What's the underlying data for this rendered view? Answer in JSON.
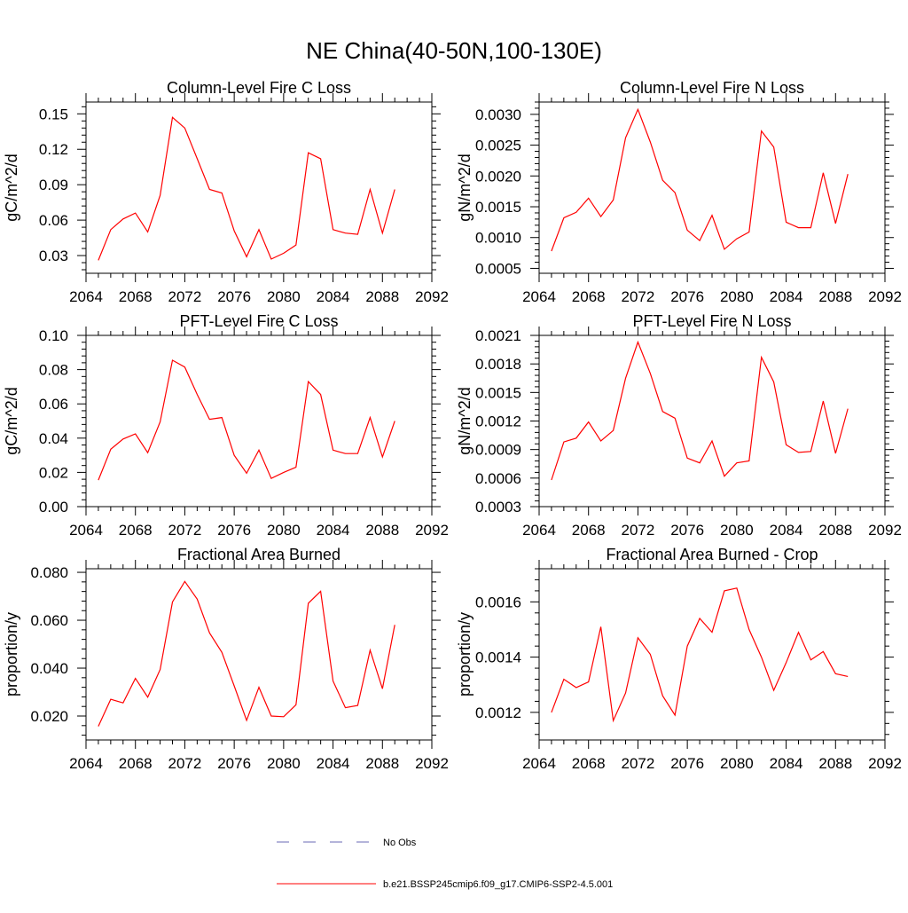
{
  "page": {
    "title": "NE China(40-50N,100-130E)"
  },
  "colors": {
    "model_line": "#ff0000",
    "obs_line": "#6a6ab4",
    "axis": "#000000"
  },
  "legend": {
    "entries": [
      {
        "label": "No Obs",
        "style": "dashed"
      },
      {
        "label": "b.e21.BSSP245cmip6.f09_g17.CMIP6-SSP2-4.5.001",
        "style": "solid"
      }
    ]
  },
  "chart_data": [
    {
      "type": "line",
      "title": "Column-Level Fire C Loss",
      "ylabel": "gC/m^2/d",
      "xlim": [
        2064,
        2092
      ],
      "xticks": [
        2064,
        2068,
        2072,
        2076,
        2080,
        2084,
        2088,
        2092
      ],
      "ylim": [
        0.015,
        0.16
      ],
      "yticks": [
        "0.03",
        "0.06",
        "0.09",
        "0.12",
        "0.15"
      ],
      "x": [
        2065,
        2066,
        2067,
        2068,
        2069,
        2070,
        2071,
        2072,
        2073,
        2074,
        2075,
        2076,
        2077,
        2078,
        2079,
        2080,
        2081,
        2082,
        2083,
        2084,
        2085,
        2086,
        2087,
        2088,
        2089
      ],
      "series": [
        {
          "values": [
            0.026,
            0.052,
            0.061,
            0.066,
            0.05,
            0.081,
            0.147,
            0.138,
            0.112,
            0.086,
            0.083,
            0.051,
            0.029,
            0.052,
            0.027,
            0.032,
            0.039,
            0.117,
            0.112,
            0.052,
            0.049,
            0.048,
            0.086,
            0.049,
            0.086
          ]
        }
      ]
    },
    {
      "type": "line",
      "title": "Column-Level Fire N Loss",
      "ylabel": "gN/m^2/d",
      "xlim": [
        2064,
        2092
      ],
      "xticks": [
        2064,
        2068,
        2072,
        2076,
        2080,
        2084,
        2088,
        2092
      ],
      "ylim": [
        0.00042,
        0.0032
      ],
      "yticks": [
        "0.0005",
        "0.0010",
        "0.0015",
        "0.0020",
        "0.0025",
        "0.0030"
      ],
      "x": [
        2065,
        2066,
        2067,
        2068,
        2069,
        2070,
        2071,
        2072,
        2073,
        2074,
        2075,
        2076,
        2077,
        2078,
        2079,
        2080,
        2081,
        2082,
        2083,
        2084,
        2085,
        2086,
        2087,
        2088,
        2089
      ],
      "series": [
        {
          "values": [
            0.00078,
            0.00132,
            0.00141,
            0.00164,
            0.00134,
            0.00161,
            0.00262,
            0.00308,
            0.00255,
            0.00193,
            0.00173,
            0.00112,
            0.00095,
            0.00136,
            0.00081,
            0.00098,
            0.00109,
            0.00273,
            0.00247,
            0.00125,
            0.00116,
            0.00116,
            0.00205,
            0.00123,
            0.00203
          ]
        }
      ]
    },
    {
      "type": "line",
      "title": "PFT-Level Fire C Loss",
      "ylabel": "gC/m^2/d",
      "xlim": [
        2064,
        2092
      ],
      "xticks": [
        2064,
        2068,
        2072,
        2076,
        2080,
        2084,
        2088,
        2092
      ],
      "ylim": [
        0,
        0.1
      ],
      "yticks": [
        "0.00",
        "0.02",
        "0.04",
        "0.06",
        "0.08",
        "0.10"
      ],
      "x": [
        2065,
        2066,
        2067,
        2068,
        2069,
        2070,
        2071,
        2072,
        2073,
        2074,
        2075,
        2076,
        2077,
        2078,
        2079,
        2080,
        2081,
        2082,
        2083,
        2084,
        2085,
        2086,
        2087,
        2088,
        2089
      ],
      "series": [
        {
          "values": [
            0.0155,
            0.0335,
            0.0395,
            0.0425,
            0.0315,
            0.0495,
            0.0855,
            0.0815,
            0.0655,
            0.051,
            0.052,
            0.03,
            0.0195,
            0.033,
            0.0165,
            0.02,
            0.023,
            0.073,
            0.0655,
            0.033,
            0.031,
            0.031,
            0.052,
            0.029,
            0.05
          ]
        }
      ]
    },
    {
      "type": "line",
      "title": "PFT-Level Fire N Loss",
      "ylabel": "gN/m^2/d",
      "xlim": [
        2064,
        2092
      ],
      "xticks": [
        2064,
        2068,
        2072,
        2076,
        2080,
        2084,
        2088,
        2092
      ],
      "ylim": [
        0.0003,
        0.0021
      ],
      "yticks": [
        "0.0003",
        "0.0006",
        "0.0009",
        "0.0012",
        "0.0015",
        "0.0018",
        "0.0021"
      ],
      "x": [
        2065,
        2066,
        2067,
        2068,
        2069,
        2070,
        2071,
        2072,
        2073,
        2074,
        2075,
        2076,
        2077,
        2078,
        2079,
        2080,
        2081,
        2082,
        2083,
        2084,
        2085,
        2086,
        2087,
        2088,
        2089
      ],
      "series": [
        {
          "values": [
            0.00058,
            0.00098,
            0.00102,
            0.00119,
            0.00099,
            0.0011,
            0.00165,
            0.00203,
            0.0017,
            0.0013,
            0.00123,
            0.00081,
            0.00076,
            0.00099,
            0.00062,
            0.00076,
            0.00078,
            0.00187,
            0.00161,
            0.00095,
            0.00087,
            0.00088,
            0.00141,
            0.00086,
            0.00133
          ]
        }
      ]
    },
    {
      "type": "line",
      "title": "Fractional Area Burned",
      "ylabel": "proportion/y",
      "xlim": [
        2064,
        2092
      ],
      "xticks": [
        2064,
        2068,
        2072,
        2076,
        2080,
        2084,
        2088,
        2092
      ],
      "ylim": [
        0.01,
        0.0815
      ],
      "yticks": [
        "0.020",
        "0.040",
        "0.060",
        "0.080"
      ],
      "x": [
        2065,
        2066,
        2067,
        2068,
        2069,
        2070,
        2071,
        2072,
        2073,
        2074,
        2075,
        2076,
        2077,
        2078,
        2079,
        2080,
        2081,
        2082,
        2083,
        2084,
        2085,
        2086,
        2087,
        2088,
        2089
      ],
      "series": [
        {
          "values": [
            0.0157,
            0.027,
            0.0255,
            0.0357,
            0.0279,
            0.0394,
            0.0676,
            0.0762,
            0.0688,
            0.0547,
            0.0466,
            0.0326,
            0.0182,
            0.032,
            0.02,
            0.0197,
            0.0247,
            0.0671,
            0.0721,
            0.0346,
            0.0235,
            0.0244,
            0.0475,
            0.0314,
            0.0581
          ]
        }
      ]
    },
    {
      "type": "line",
      "title": "Fractional Area Burned - Crop",
      "ylabel": "proportion/y",
      "xlim": [
        2064,
        2092
      ],
      "xticks": [
        2064,
        2068,
        2072,
        2076,
        2080,
        2084,
        2088,
        2092
      ],
      "ylim": [
        0.0011,
        0.00172
      ],
      "yticks": [
        "0.0012",
        "0.0014",
        "0.0016"
      ],
      "x": [
        2065,
        2066,
        2067,
        2068,
        2069,
        2070,
        2071,
        2072,
        2073,
        2074,
        2075,
        2076,
        2077,
        2078,
        2079,
        2080,
        2081,
        2082,
        2083,
        2084,
        2085,
        2086,
        2087,
        2088,
        2089
      ],
      "series": [
        {
          "values": [
            0.0012,
            0.00132,
            0.00129,
            0.00131,
            0.00151,
            0.00117,
            0.00127,
            0.00147,
            0.00141,
            0.00126,
            0.00119,
            0.00144,
            0.00154,
            0.00149,
            0.00164,
            0.00165,
            0.0015,
            0.0014,
            0.00128,
            0.00138,
            0.00149,
            0.00139,
            0.00142,
            0.00134,
            0.00133
          ]
        }
      ]
    }
  ]
}
